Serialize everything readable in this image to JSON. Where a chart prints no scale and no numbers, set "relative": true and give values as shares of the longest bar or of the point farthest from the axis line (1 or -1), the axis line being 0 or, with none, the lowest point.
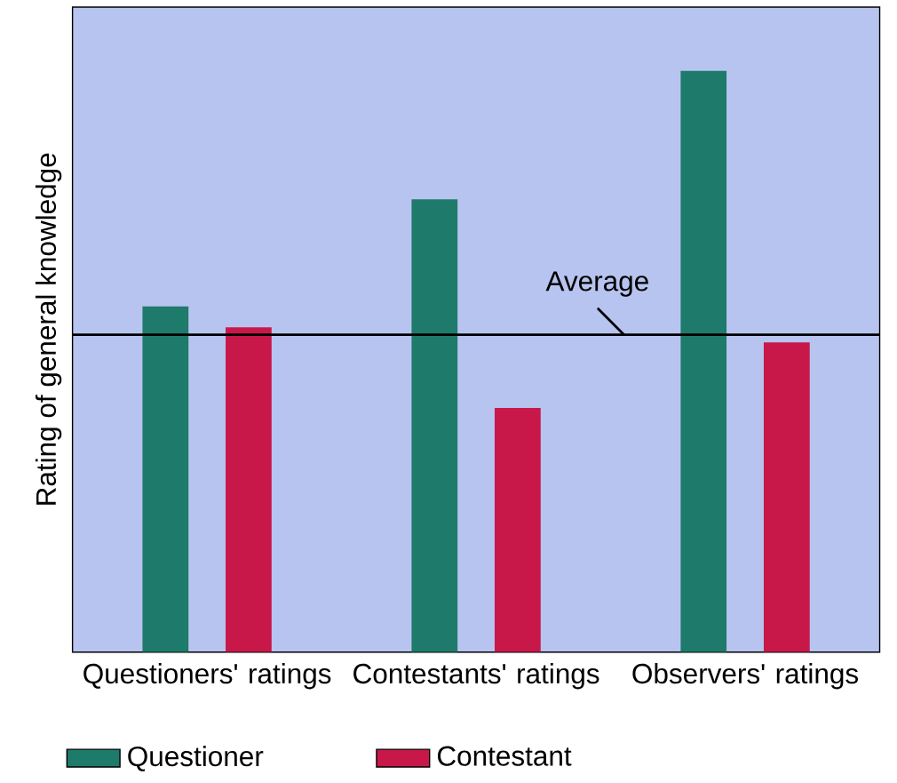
{
  "chart_data": {
    "type": "bar",
    "relative": true,
    "ylabel": "Rating of general knowledge",
    "categories": [
      "Questioners' ratings",
      "Contestants' ratings",
      "Observers' ratings"
    ],
    "series": [
      {
        "name": "Questioner",
        "color": "#1e7a6a",
        "values": [
          0.595,
          0.779,
          1
        ]
      },
      {
        "name": "Contestant",
        "color": "#c8184a",
        "values": [
          0.559,
          0.42,
          0.533
        ]
      }
    ],
    "ref_lines": [
      {
        "axis": "y",
        "value": 0.546,
        "label": "Average"
      }
    ],
    "legend": "bottom left"
  }
}
